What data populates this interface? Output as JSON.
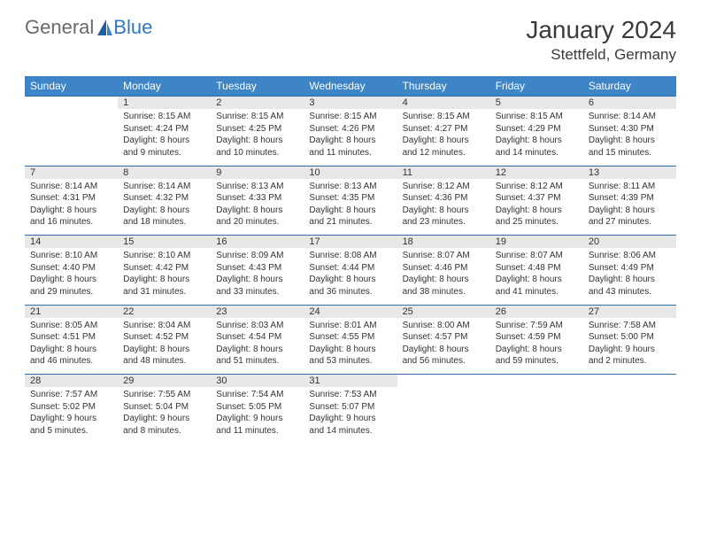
{
  "logo": {
    "general": "General",
    "blue": "Blue"
  },
  "title": "January 2024",
  "location": "Stettfeld, Germany",
  "colors": {
    "header_bg": "#3d85c6",
    "header_text": "#ffffff",
    "daynum_bg": "#e8e8e8",
    "row_border": "#2f6fa8",
    "body_text": "#333333",
    "logo_gray": "#6a6a6a",
    "logo_blue": "#2f78bd"
  },
  "weekdays": [
    "Sunday",
    "Monday",
    "Tuesday",
    "Wednesday",
    "Thursday",
    "Friday",
    "Saturday"
  ],
  "weeks": [
    {
      "nums": [
        "",
        "1",
        "2",
        "3",
        "4",
        "5",
        "6"
      ],
      "cells": [
        null,
        {
          "sr": "Sunrise: 8:15 AM",
          "ss": "Sunset: 4:24 PM",
          "dl": "Daylight: 8 hours and 9 minutes."
        },
        {
          "sr": "Sunrise: 8:15 AM",
          "ss": "Sunset: 4:25 PM",
          "dl": "Daylight: 8 hours and 10 minutes."
        },
        {
          "sr": "Sunrise: 8:15 AM",
          "ss": "Sunset: 4:26 PM",
          "dl": "Daylight: 8 hours and 11 minutes."
        },
        {
          "sr": "Sunrise: 8:15 AM",
          "ss": "Sunset: 4:27 PM",
          "dl": "Daylight: 8 hours and 12 minutes."
        },
        {
          "sr": "Sunrise: 8:15 AM",
          "ss": "Sunset: 4:29 PM",
          "dl": "Daylight: 8 hours and 14 minutes."
        },
        {
          "sr": "Sunrise: 8:14 AM",
          "ss": "Sunset: 4:30 PM",
          "dl": "Daylight: 8 hours and 15 minutes."
        }
      ]
    },
    {
      "nums": [
        "7",
        "8",
        "9",
        "10",
        "11",
        "12",
        "13"
      ],
      "cells": [
        {
          "sr": "Sunrise: 8:14 AM",
          "ss": "Sunset: 4:31 PM",
          "dl": "Daylight: 8 hours and 16 minutes."
        },
        {
          "sr": "Sunrise: 8:14 AM",
          "ss": "Sunset: 4:32 PM",
          "dl": "Daylight: 8 hours and 18 minutes."
        },
        {
          "sr": "Sunrise: 8:13 AM",
          "ss": "Sunset: 4:33 PM",
          "dl": "Daylight: 8 hours and 20 minutes."
        },
        {
          "sr": "Sunrise: 8:13 AM",
          "ss": "Sunset: 4:35 PM",
          "dl": "Daylight: 8 hours and 21 minutes."
        },
        {
          "sr": "Sunrise: 8:12 AM",
          "ss": "Sunset: 4:36 PM",
          "dl": "Daylight: 8 hours and 23 minutes."
        },
        {
          "sr": "Sunrise: 8:12 AM",
          "ss": "Sunset: 4:37 PM",
          "dl": "Daylight: 8 hours and 25 minutes."
        },
        {
          "sr": "Sunrise: 8:11 AM",
          "ss": "Sunset: 4:39 PM",
          "dl": "Daylight: 8 hours and 27 minutes."
        }
      ]
    },
    {
      "nums": [
        "14",
        "15",
        "16",
        "17",
        "18",
        "19",
        "20"
      ],
      "cells": [
        {
          "sr": "Sunrise: 8:10 AM",
          "ss": "Sunset: 4:40 PM",
          "dl": "Daylight: 8 hours and 29 minutes."
        },
        {
          "sr": "Sunrise: 8:10 AM",
          "ss": "Sunset: 4:42 PM",
          "dl": "Daylight: 8 hours and 31 minutes."
        },
        {
          "sr": "Sunrise: 8:09 AM",
          "ss": "Sunset: 4:43 PM",
          "dl": "Daylight: 8 hours and 33 minutes."
        },
        {
          "sr": "Sunrise: 8:08 AM",
          "ss": "Sunset: 4:44 PM",
          "dl": "Daylight: 8 hours and 36 minutes."
        },
        {
          "sr": "Sunrise: 8:07 AM",
          "ss": "Sunset: 4:46 PM",
          "dl": "Daylight: 8 hours and 38 minutes."
        },
        {
          "sr": "Sunrise: 8:07 AM",
          "ss": "Sunset: 4:48 PM",
          "dl": "Daylight: 8 hours and 41 minutes."
        },
        {
          "sr": "Sunrise: 8:06 AM",
          "ss": "Sunset: 4:49 PM",
          "dl": "Daylight: 8 hours and 43 minutes."
        }
      ]
    },
    {
      "nums": [
        "21",
        "22",
        "23",
        "24",
        "25",
        "26",
        "27"
      ],
      "cells": [
        {
          "sr": "Sunrise: 8:05 AM",
          "ss": "Sunset: 4:51 PM",
          "dl": "Daylight: 8 hours and 46 minutes."
        },
        {
          "sr": "Sunrise: 8:04 AM",
          "ss": "Sunset: 4:52 PM",
          "dl": "Daylight: 8 hours and 48 minutes."
        },
        {
          "sr": "Sunrise: 8:03 AM",
          "ss": "Sunset: 4:54 PM",
          "dl": "Daylight: 8 hours and 51 minutes."
        },
        {
          "sr": "Sunrise: 8:01 AM",
          "ss": "Sunset: 4:55 PM",
          "dl": "Daylight: 8 hours and 53 minutes."
        },
        {
          "sr": "Sunrise: 8:00 AM",
          "ss": "Sunset: 4:57 PM",
          "dl": "Daylight: 8 hours and 56 minutes."
        },
        {
          "sr": "Sunrise: 7:59 AM",
          "ss": "Sunset: 4:59 PM",
          "dl": "Daylight: 8 hours and 59 minutes."
        },
        {
          "sr": "Sunrise: 7:58 AM",
          "ss": "Sunset: 5:00 PM",
          "dl": "Daylight: 9 hours and 2 minutes."
        }
      ]
    },
    {
      "nums": [
        "28",
        "29",
        "30",
        "31",
        "",
        "",
        ""
      ],
      "cells": [
        {
          "sr": "Sunrise: 7:57 AM",
          "ss": "Sunset: 5:02 PM",
          "dl": "Daylight: 9 hours and 5 minutes."
        },
        {
          "sr": "Sunrise: 7:55 AM",
          "ss": "Sunset: 5:04 PM",
          "dl": "Daylight: 9 hours and 8 minutes."
        },
        {
          "sr": "Sunrise: 7:54 AM",
          "ss": "Sunset: 5:05 PM",
          "dl": "Daylight: 9 hours and 11 minutes."
        },
        {
          "sr": "Sunrise: 7:53 AM",
          "ss": "Sunset: 5:07 PM",
          "dl": "Daylight: 9 hours and 14 minutes."
        },
        null,
        null,
        null
      ]
    }
  ]
}
